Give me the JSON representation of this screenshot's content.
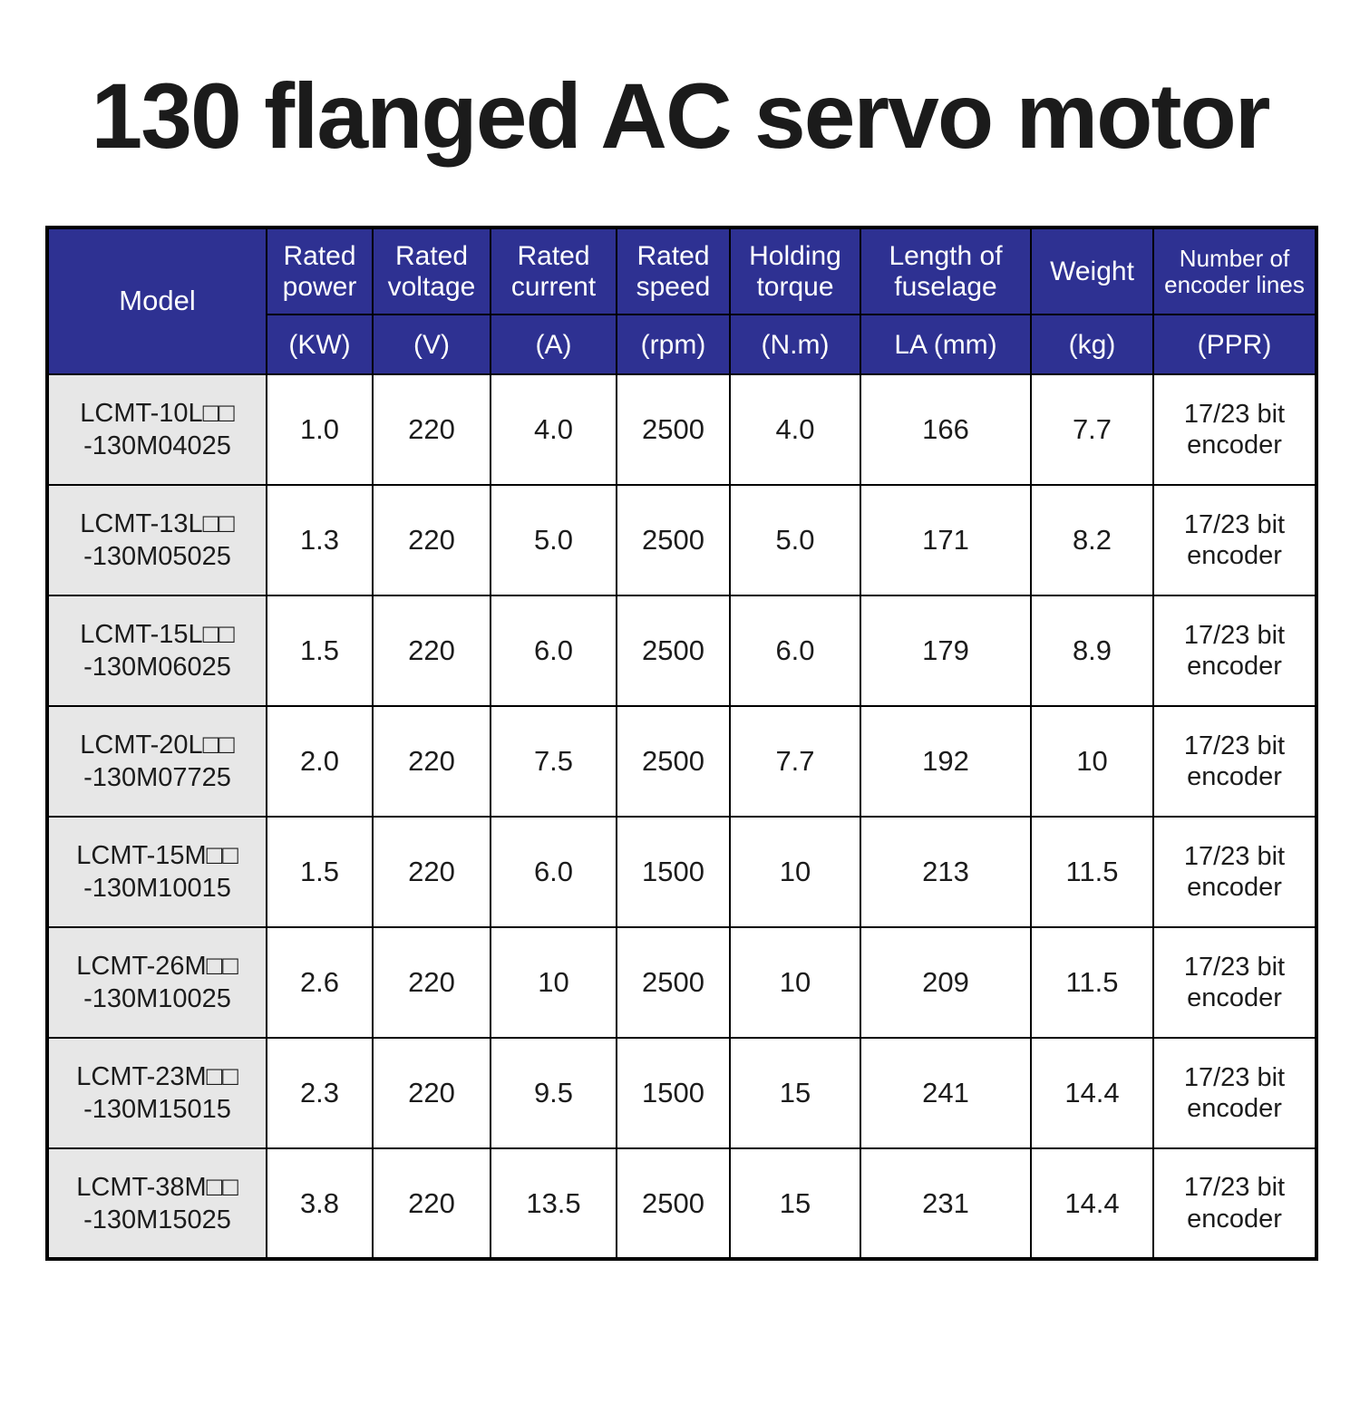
{
  "title": "130 flanged AC servo motor",
  "colors": {
    "header_bg": "#2e3192",
    "header_text": "#ffffff",
    "model_cell_bg": "#e7e7e7",
    "border": "#000000",
    "body_text": "#1c1c1c",
    "page_bg": "#ffffff"
  },
  "table": {
    "header": {
      "model_label": "Model",
      "columns": [
        {
          "label": "Rated power",
          "unit": "(KW)"
        },
        {
          "label": "Rated voltage",
          "unit": "(V)"
        },
        {
          "label": "Rated current",
          "unit": "(A)"
        },
        {
          "label": "Rated speed",
          "unit": "(rpm)"
        },
        {
          "label": "Holding torque",
          "unit": "(N.m)"
        },
        {
          "label": "Length of fuselage",
          "unit": "LA (mm)"
        },
        {
          "label": "Weight",
          "unit": "(kg)"
        },
        {
          "label": "Number of encoder lines",
          "unit": "(PPR)"
        }
      ]
    },
    "rows": [
      {
        "model": "LCMT-10L□□\n-130M04025",
        "rated_power": "1.0",
        "rated_voltage": "220",
        "rated_current": "4.0",
        "rated_speed": "2500",
        "holding_torque": "4.0",
        "length_of_fuselage": "166",
        "weight": "7.7",
        "encoder": "17/23 bit encoder"
      },
      {
        "model": "LCMT-13L□□\n-130M05025",
        "rated_power": "1.3",
        "rated_voltage": "220",
        "rated_current": "5.0",
        "rated_speed": "2500",
        "holding_torque": "5.0",
        "length_of_fuselage": "171",
        "weight": "8.2",
        "encoder": "17/23 bit encoder"
      },
      {
        "model": "LCMT-15L□□\n-130M06025",
        "rated_power": "1.5",
        "rated_voltage": "220",
        "rated_current": "6.0",
        "rated_speed": "2500",
        "holding_torque": "6.0",
        "length_of_fuselage": "179",
        "weight": "8.9",
        "encoder": "17/23 bit encoder"
      },
      {
        "model": "LCMT-20L□□\n-130M07725",
        "rated_power": "2.0",
        "rated_voltage": "220",
        "rated_current": "7.5",
        "rated_speed": "2500",
        "holding_torque": "7.7",
        "length_of_fuselage": "192",
        "weight": "10",
        "encoder": "17/23 bit encoder"
      },
      {
        "model": "LCMT-15M□□\n-130M10015",
        "rated_power": "1.5",
        "rated_voltage": "220",
        "rated_current": "6.0",
        "rated_speed": "1500",
        "holding_torque": "10",
        "length_of_fuselage": "213",
        "weight": "11.5",
        "encoder": "17/23 bit encoder"
      },
      {
        "model": "LCMT-26M□□\n-130M10025",
        "rated_power": "2.6",
        "rated_voltage": "220",
        "rated_current": "10",
        "rated_speed": "2500",
        "holding_torque": "10",
        "length_of_fuselage": "209",
        "weight": "11.5",
        "encoder": "17/23 bit encoder"
      },
      {
        "model": "LCMT-23M□□\n-130M15015",
        "rated_power": "2.3",
        "rated_voltage": "220",
        "rated_current": "9.5",
        "rated_speed": "1500",
        "holding_torque": "15",
        "length_of_fuselage": "241",
        "weight": "14.4",
        "encoder": "17/23 bit encoder"
      },
      {
        "model": "LCMT-38M□□\n-130M15025",
        "rated_power": "3.8",
        "rated_voltage": "220",
        "rated_current": "13.5",
        "rated_speed": "2500",
        "holding_torque": "15",
        "length_of_fuselage": "231",
        "weight": "14.4",
        "encoder": "17/23 bit encoder"
      }
    ]
  }
}
